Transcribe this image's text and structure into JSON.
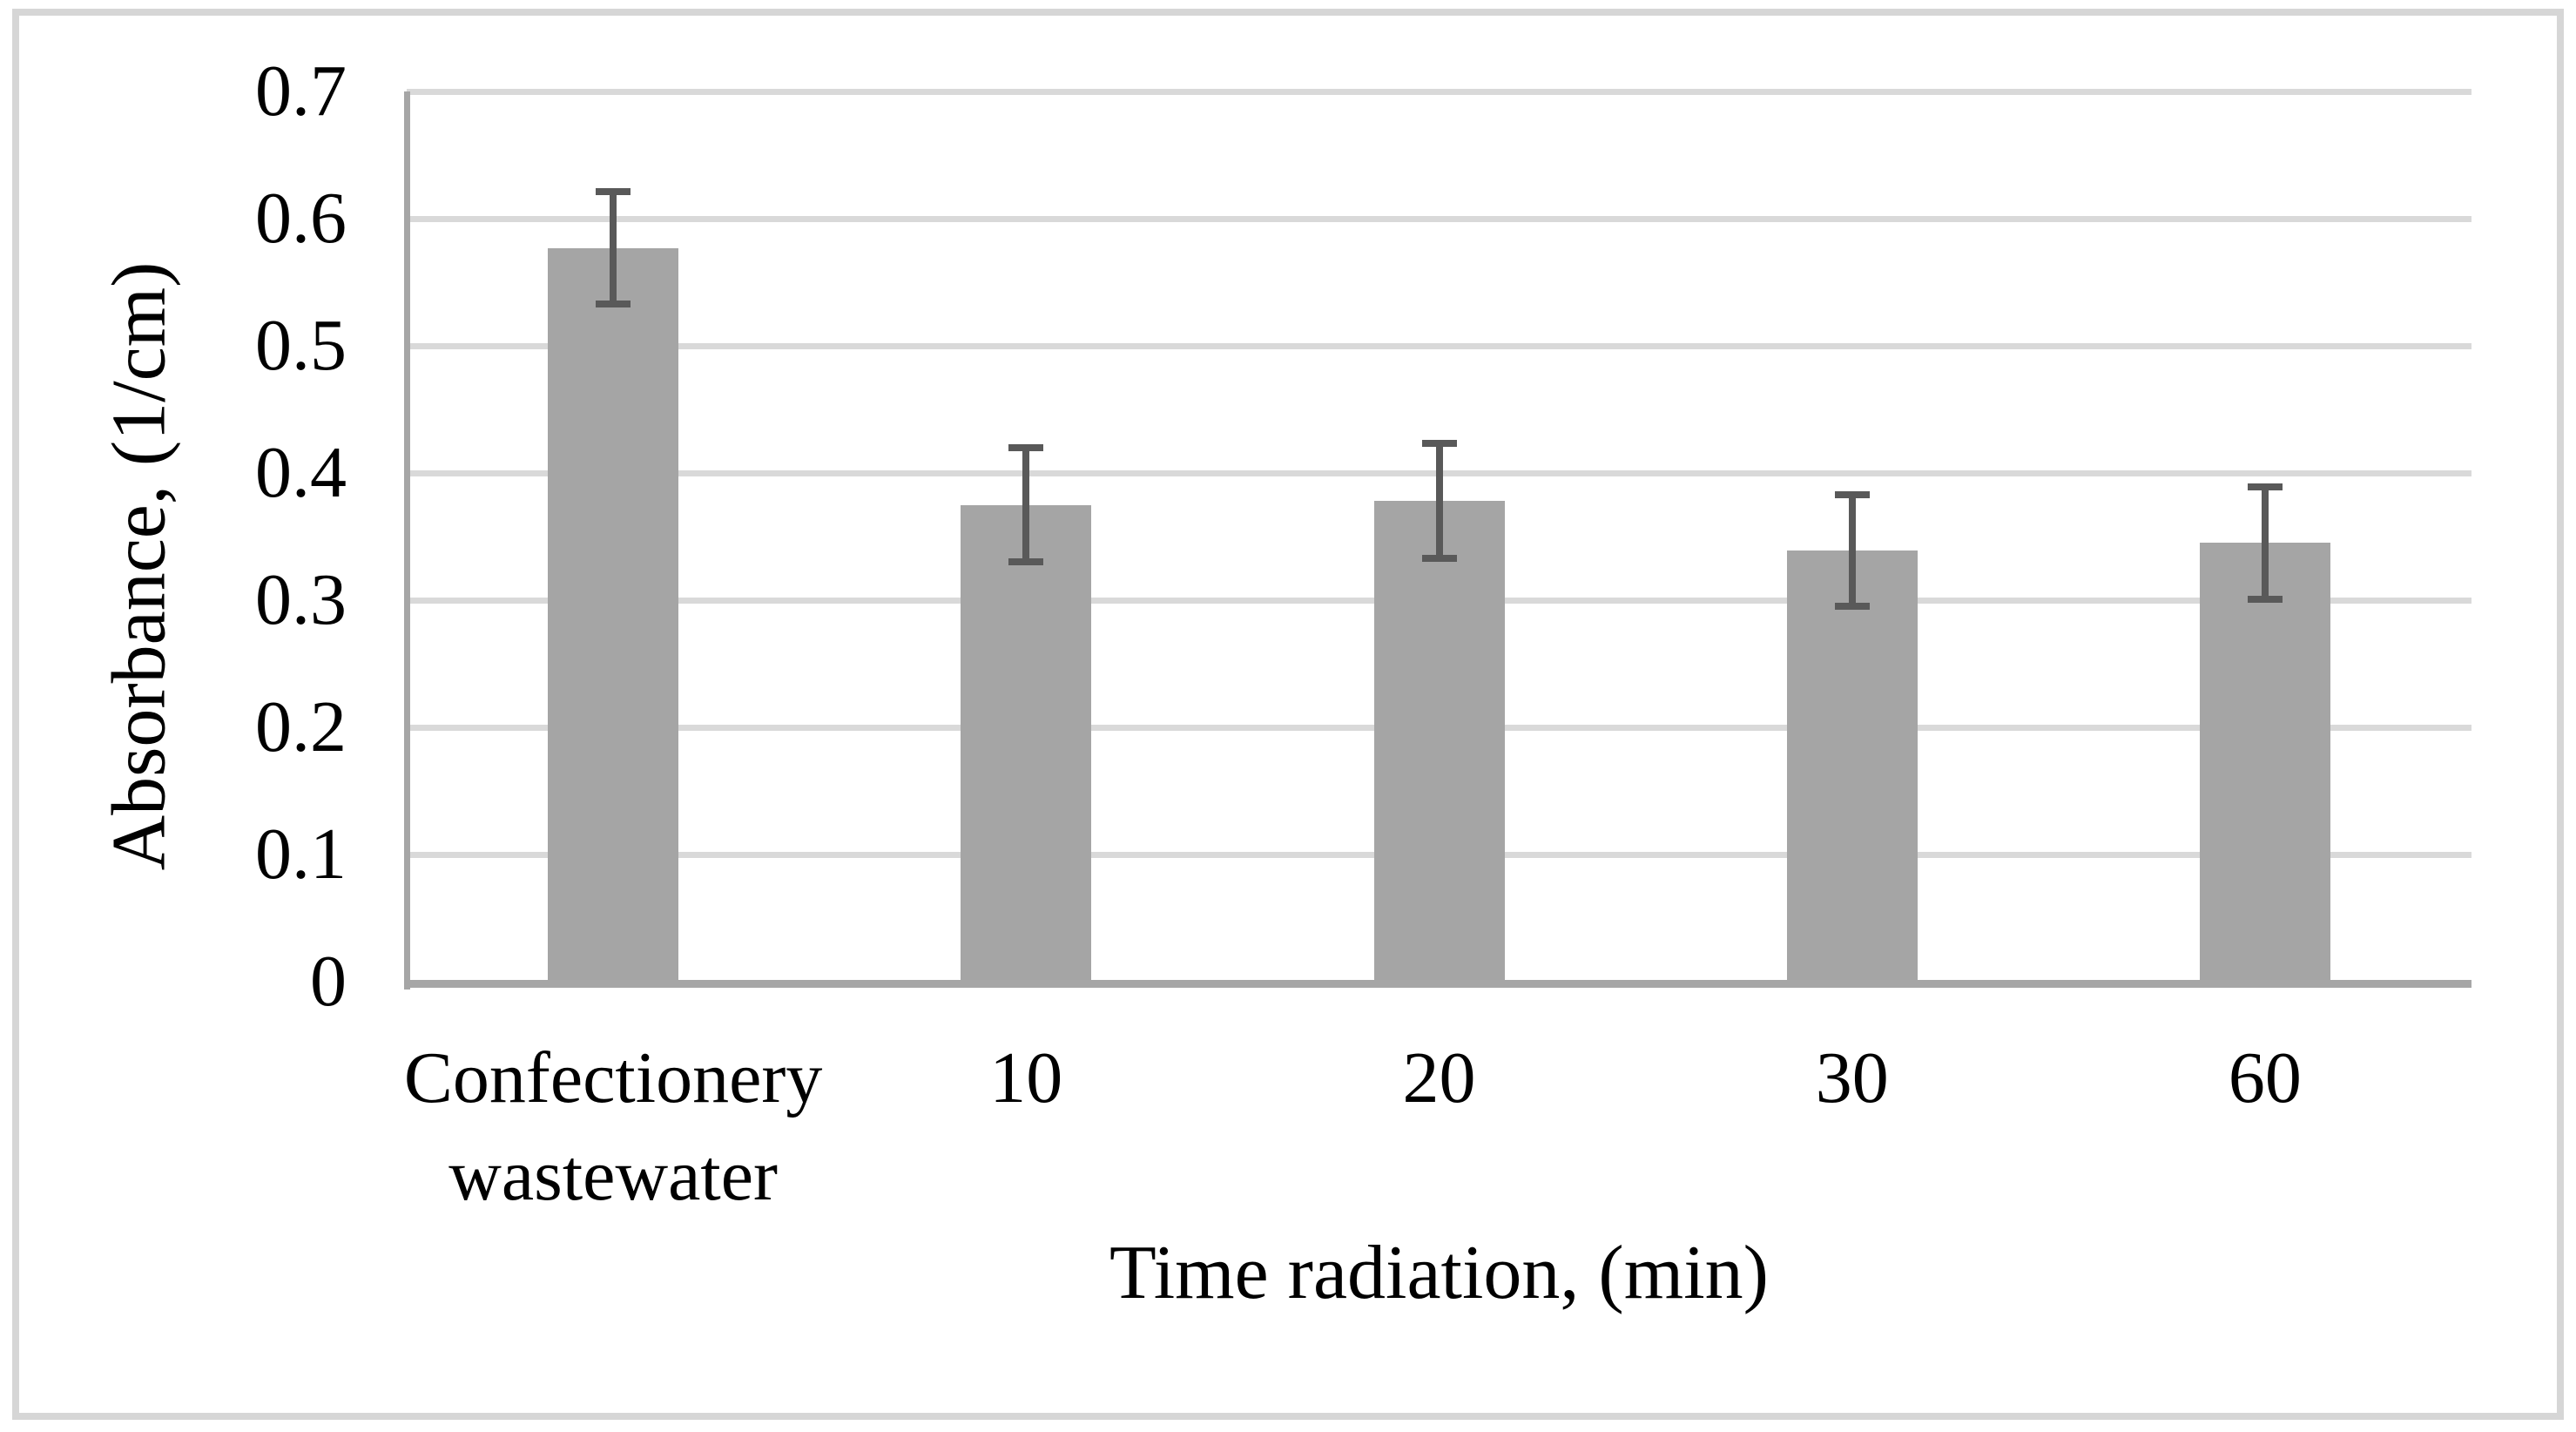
{
  "figure": {
    "background": "#ffffff",
    "border_color": "#d6d6d6"
  },
  "chart_data": {
    "type": "bar",
    "title": "",
    "categories": [
      "Confectionery wastewater",
      "10",
      "20",
      "30",
      "60"
    ],
    "values": [
      0.577,
      0.375,
      0.378,
      0.339,
      0.345
    ],
    "error_bars": [
      0.044,
      0.045,
      0.045,
      0.044,
      0.044
    ],
    "xlabel": "Time radiation, (min)",
    "ylabel": "Absorbance, (1/cm)",
    "ylim": [
      0,
      0.7
    ],
    "ytick_step": 0.1,
    "ytick_labels": [
      "0",
      "0.1",
      "0.2",
      "0.3",
      "0.4",
      "0.5",
      "0.6",
      "0.7"
    ],
    "grid": "horizontal",
    "legend": "none",
    "colors": {
      "bar_fill": "#a5a5a5",
      "error_bar": "#595959",
      "gridline": "#d9d9d9",
      "axis_line": "#a6a6a6",
      "text": "#000000"
    }
  }
}
